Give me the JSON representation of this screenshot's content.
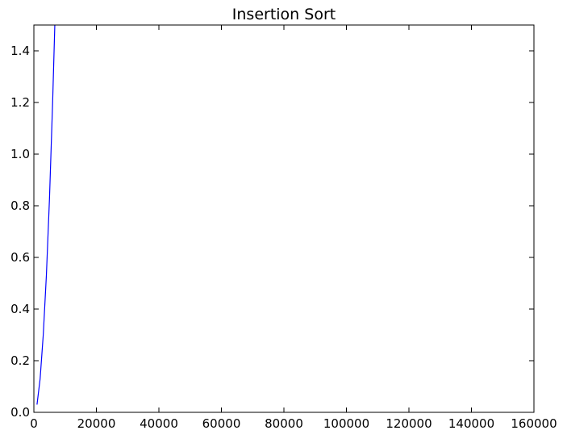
{
  "chart_data": {
    "type": "line",
    "title": "Insertion Sort",
    "xlabel": "",
    "ylabel": "",
    "xlim": [
      0,
      160000
    ],
    "ylim": [
      0,
      1.5
    ],
    "xticks": [
      0,
      20000,
      40000,
      60000,
      80000,
      100000,
      120000,
      140000,
      160000
    ],
    "xtick_labels": [
      "0",
      "20000",
      "40000",
      "60000",
      "80000",
      "100000",
      "120000",
      "140000",
      "160000"
    ],
    "yticks": [
      0.0,
      0.2,
      0.4,
      0.6,
      0.8,
      1.0,
      1.2,
      1.4
    ],
    "ytick_labels": [
      "0.0",
      "0.2",
      "0.4",
      "0.6",
      "0.8",
      "1.0",
      "1.2",
      "1.4"
    ],
    "grid": false,
    "legend": "none",
    "series": [
      {
        "color": "#0000ff",
        "x": [
          1000,
          2000,
          3000,
          4000,
          5000,
          6000,
          7000
        ],
        "y": [
          0.03,
          0.13,
          0.3,
          0.53,
          0.83,
          1.2,
          1.63
        ]
      }
    ]
  }
}
